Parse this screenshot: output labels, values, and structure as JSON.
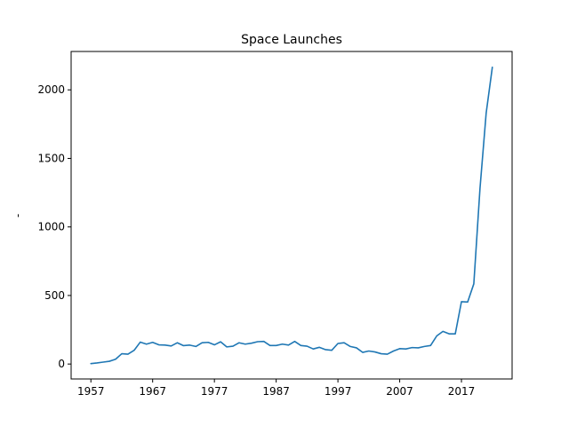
{
  "chart_data": {
    "type": "line",
    "title": "Space Launches",
    "xlabel": "",
    "ylabel": "-",
    "xlim": [
      1953.8,
      2025.2
    ],
    "ylim": [
      -109,
      2280
    ],
    "xticks": [
      1957,
      1967,
      1977,
      1987,
      1997,
      2007,
      2017
    ],
    "yticks": [
      0,
      500,
      1000,
      1500,
      2000
    ],
    "grid": false,
    "legend": "none",
    "series": [
      {
        "color": "#1f77b4",
        "x": [
          1957,
          1958,
          1959,
          1960,
          1961,
          1962,
          1963,
          1964,
          1965,
          1966,
          1967,
          1968,
          1969,
          1970,
          1971,
          1972,
          1973,
          1974,
          1975,
          1976,
          1977,
          1978,
          1979,
          1980,
          1981,
          1982,
          1983,
          1984,
          1985,
          1986,
          1987,
          1988,
          1989,
          1990,
          1991,
          1992,
          1993,
          1994,
          1995,
          1996,
          1997,
          1998,
          1999,
          2000,
          2001,
          2002,
          2003,
          2004,
          2005,
          2006,
          2007,
          2008,
          2009,
          2010,
          2011,
          2012,
          2013,
          2014,
          2015,
          2016,
          2017,
          2018,
          2019,
          2020,
          2021,
          2022
        ],
        "y": [
          3,
          8,
          14,
          20,
          35,
          75,
          72,
          100,
          160,
          145,
          158,
          140,
          138,
          132,
          155,
          134,
          138,
          128,
          155,
          158,
          140,
          162,
          125,
          130,
          155,
          145,
          152,
          163,
          165,
          135,
          135,
          145,
          138,
          165,
          135,
          130,
          110,
          122,
          105,
          100,
          150,
          155,
          128,
          118,
          85,
          95,
          88,
          75,
          72,
          95,
          112,
          110,
          120,
          118,
          128,
          135,
          205,
          238,
          220,
          220,
          455,
          452,
          585,
          1280,
          1830,
          2165
        ]
      }
    ]
  }
}
